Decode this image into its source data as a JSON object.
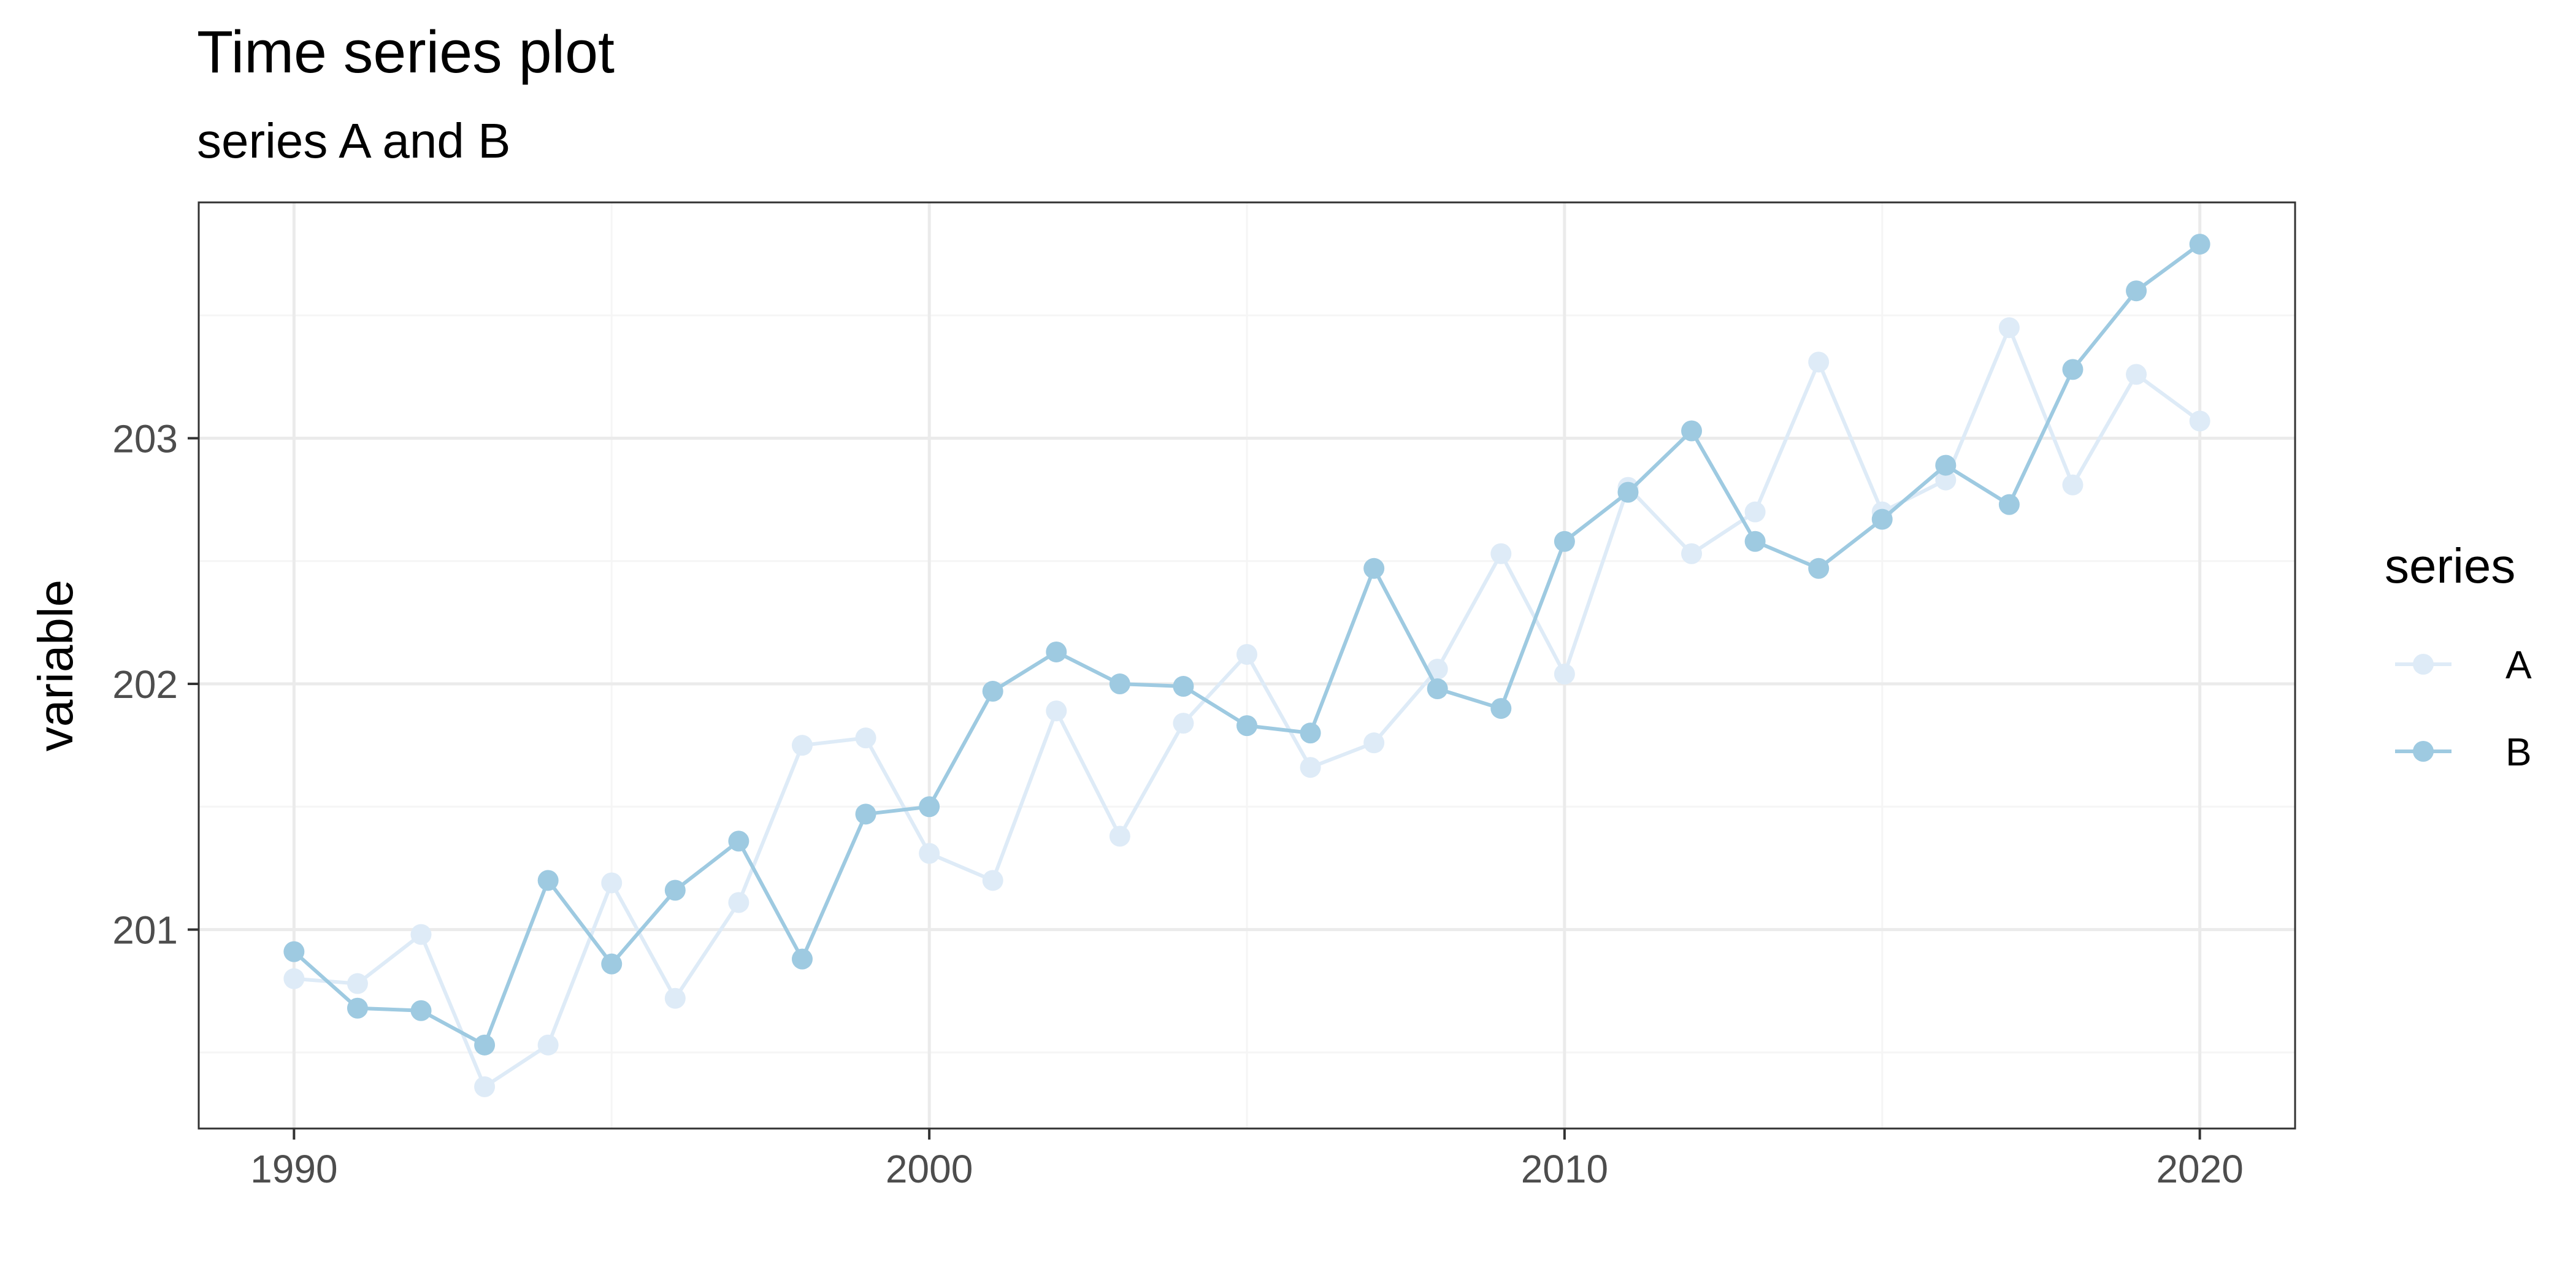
{
  "chart_data": {
    "type": "line",
    "title": "Time series plot",
    "subtitle": "series A and B",
    "xlabel": "",
    "ylabel": "variable",
    "xlim": [
      1988.5,
      2021.5
    ],
    "ylim": [
      200.19,
      203.96
    ],
    "x_ticks": [
      1990,
      2000,
      2010,
      2020
    ],
    "x_tick_labels": [
      "1990",
      "2000",
      "2010",
      "2020"
    ],
    "y_ticks": [
      201,
      202,
      203
    ],
    "y_tick_labels": [
      "201",
      "202",
      "203"
    ],
    "grid": true,
    "legend": {
      "title": "series",
      "position": "right"
    },
    "x": [
      1990,
      1991,
      1992,
      1993,
      1994,
      1995,
      1996,
      1997,
      1998,
      1999,
      2000,
      2001,
      2002,
      2003,
      2004,
      2005,
      2006,
      2007,
      2008,
      2009,
      2010,
      2011,
      2012,
      2013,
      2014,
      2015,
      2016,
      2017,
      2018,
      2019,
      2020
    ],
    "series": [
      {
        "name": "A",
        "color": "#deebf7",
        "values": [
          200.8,
          200.78,
          200.98,
          200.36,
          200.53,
          201.19,
          200.72,
          201.11,
          201.75,
          201.78,
          201.31,
          201.2,
          201.89,
          201.38,
          201.84,
          202.12,
          201.66,
          201.76,
          202.06,
          202.53,
          202.04,
          202.8,
          202.53,
          202.7,
          203.31,
          202.7,
          202.83,
          203.45,
          202.81,
          203.26,
          203.07
        ]
      },
      {
        "name": "B",
        "color": "#9ecae1",
        "values": [
          200.91,
          200.68,
          200.67,
          200.53,
          201.2,
          200.86,
          201.16,
          201.36,
          200.88,
          201.47,
          201.5,
          201.97,
          202.13,
          202.0,
          201.99,
          201.83,
          201.8,
          202.47,
          201.98,
          201.9,
          202.58,
          202.78,
          203.03,
          202.58,
          202.47,
          202.67,
          202.89,
          202.73,
          203.28,
          203.6,
          203.79
        ]
      }
    ]
  },
  "colors": {
    "panel_border": "#333333",
    "grid_major": "#ebebeb",
    "grid_minor": "#f5f5f5",
    "tick": "#333333"
  }
}
